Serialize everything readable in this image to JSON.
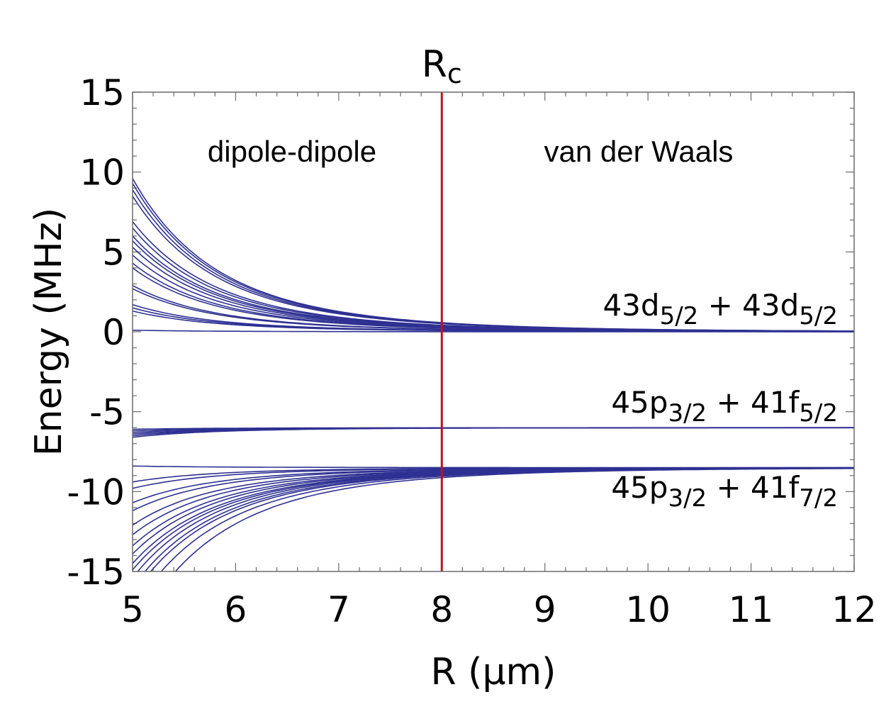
{
  "chart_data": {
    "type": "line",
    "xlabel": "R (μm)",
    "ylabel": "Energy (MHz)",
    "xlim": [
      5,
      12
    ],
    "ylim": [
      -15,
      15
    ],
    "x_ticks": [
      "5",
      "6",
      "7",
      "8",
      "9",
      "10",
      "11",
      "12"
    ],
    "y_ticks": [
      "15",
      "10",
      "5",
      "0",
      "-5",
      "-10",
      "-15"
    ],
    "grid": false,
    "line_color": "#2e3192",
    "marker": {
      "label_main": "R",
      "label_sub": "c",
      "x": 8,
      "color": "#c1121f"
    },
    "region_labels": {
      "left": "dipole-dipole",
      "right": "van der Waals"
    },
    "state_labels": [
      {
        "parts": [
          "43d",
          "5/2",
          " + 43d",
          "5/2"
        ],
        "y_asymptote": 0
      },
      {
        "parts": [
          "45p",
          "3/2",
          " + 41f",
          "5/2"
        ],
        "y_asymptote": -6
      },
      {
        "parts": [
          "45p",
          "3/2",
          " + 41f",
          "7/2"
        ],
        "y_asymptote": -8.5
      }
    ],
    "series_model": "E(R) = asymptote + E5 * (5/R)^p",
    "series": [
      {
        "asymptote": 0,
        "E5": 9.6,
        "p": 6
      },
      {
        "asymptote": 0,
        "E5": 9.3,
        "p": 6
      },
      {
        "asymptote": 0,
        "E5": 8.9,
        "p": 6
      },
      {
        "asymptote": 0,
        "E5": 8.5,
        "p": 6
      },
      {
        "asymptote": 0,
        "E5": 6.9,
        "p": 6
      },
      {
        "asymptote": 0,
        "E5": 6.5,
        "p": 6
      },
      {
        "asymptote": 0,
        "E5": 6.0,
        "p": 6
      },
      {
        "asymptote": 0,
        "E5": 5.7,
        "p": 6
      },
      {
        "asymptote": 0,
        "E5": 5.3,
        "p": 6
      },
      {
        "asymptote": 0,
        "E5": 4.8,
        "p": 6
      },
      {
        "asymptote": 0,
        "E5": 4.3,
        "p": 6
      },
      {
        "asymptote": 0,
        "E5": 4.0,
        "p": 6
      },
      {
        "asymptote": 0,
        "E5": 2.9,
        "p": 6
      },
      {
        "asymptote": 0,
        "E5": 2.7,
        "p": 6
      },
      {
        "asymptote": 0,
        "E5": 1.7,
        "p": 6
      },
      {
        "asymptote": 0,
        "E5": 1.5,
        "p": 6
      },
      {
        "asymptote": 0,
        "E5": 1.3,
        "p": 6
      },
      {
        "asymptote": 0,
        "E5": 0.1,
        "p": 6
      },
      {
        "asymptote": -6,
        "E5": -0.1,
        "p": 6
      },
      {
        "asymptote": -6,
        "E5": -0.2,
        "p": 6
      },
      {
        "asymptote": -6,
        "E5": -0.3,
        "p": 6
      },
      {
        "asymptote": -6,
        "E5": -0.4,
        "p": 6
      },
      {
        "asymptote": -6,
        "E5": -0.5,
        "p": 6
      },
      {
        "asymptote": -6,
        "E5": -0.6,
        "p": 6
      },
      {
        "asymptote": -8.5,
        "E5": 0.1,
        "p": 6
      },
      {
        "asymptote": -8.5,
        "E5": -0.9,
        "p": 6
      },
      {
        "asymptote": -8.5,
        "E5": -1.3,
        "p": 6
      },
      {
        "asymptote": -8.5,
        "E5": -2.2,
        "p": 6
      },
      {
        "asymptote": -8.5,
        "E5": -2.7,
        "p": 6
      },
      {
        "asymptote": -8.5,
        "E5": -3.6,
        "p": 6
      },
      {
        "asymptote": -8.5,
        "E5": -4.2,
        "p": 6
      },
      {
        "asymptote": -8.5,
        "E5": -4.9,
        "p": 6
      },
      {
        "asymptote": -8.5,
        "E5": -5.4,
        "p": 6
      },
      {
        "asymptote": -8.5,
        "E5": -6.0,
        "p": 6
      },
      {
        "asymptote": -8.5,
        "E5": -6.4,
        "p": 6
      },
      {
        "asymptote": -8.5,
        "E5": -6.9,
        "p": 6
      },
      {
        "asymptote": -8.5,
        "E5": -7.5,
        "p": 6
      },
      {
        "asymptote": -8.5,
        "E5": -8.0,
        "p": 6
      },
      {
        "asymptote": -8.5,
        "E5": -9.0,
        "p": 6
      },
      {
        "asymptote": -8.5,
        "E5": -10.5,
        "p": 6
      }
    ]
  }
}
